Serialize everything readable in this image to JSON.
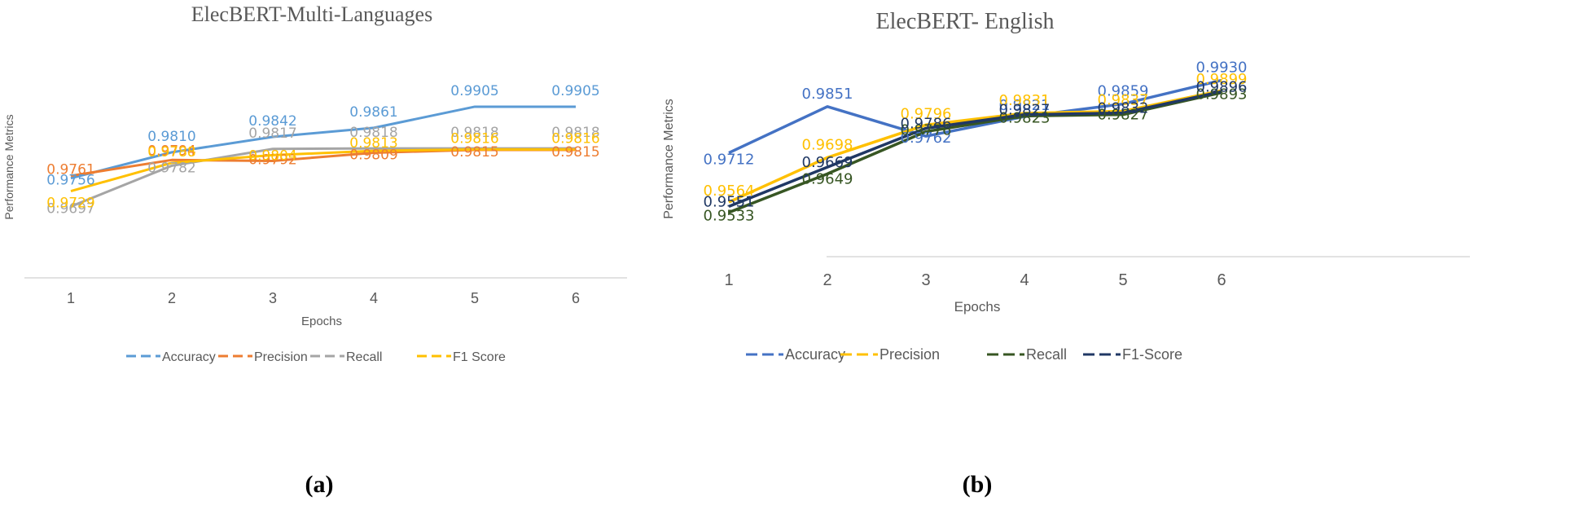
{
  "chart_data": [
    {
      "type": "line",
      "title": "ElecBERT-Multi-Languages",
      "subcaption": "(a)",
      "xlabel": "Epochs",
      "ylabel": "Performance Metrics",
      "categories": [
        "1",
        "2",
        "3",
        "4",
        "5",
        "6"
      ],
      "ylim": [
        0.955,
        1.0
      ],
      "legend_position": "bottom",
      "series": [
        {
          "name": "Accuracy",
          "color": "#5B9BD5",
          "values": [
            0.9756,
            0.981,
            0.9842,
            0.9861,
            0.9905,
            0.9905
          ],
          "labels": [
            "0.9756",
            "0.9810",
            "0.9842",
            "0.9861",
            "0.9905",
            "0.9905"
          ]
        },
        {
          "name": "Precision",
          "color": "#ED7D31",
          "values": [
            0.9761,
            0.9794,
            0.9792,
            0.9809,
            0.9815,
            0.9815
          ],
          "labels": [
            "0.9761",
            "0.9794",
            "0.9792",
            "0.9809",
            "0.9815",
            "0.9815"
          ]
        },
        {
          "name": "Recall",
          "color": "#A5A5A5",
          "values": [
            0.9697,
            0.9782,
            0.9817,
            0.9818,
            0.9818,
            0.9818
          ],
          "labels": [
            "0.9697",
            "0.9782",
            "0.9817",
            "0.9818",
            "0.9818",
            "0.9818"
          ]
        },
        {
          "name": "F1 Score",
          "color": "#FFC000",
          "values": [
            0.9729,
            0.9788,
            0.9804,
            0.9813,
            0.9816,
            0.9816
          ],
          "labels": [
            "0.9729",
            "0.9788",
            "0.9804",
            "0.9813",
            "0.9816",
            "0.9816"
          ]
        }
      ]
    },
    {
      "type": "line",
      "title": "ElecBERT- English",
      "subcaption": "(b)",
      "xlabel": "Epochs",
      "ylabel": "Performance Metrics",
      "categories": [
        "1",
        "2",
        "3",
        "4",
        "5",
        "6"
      ],
      "ylim": [
        0.94,
        1.0
      ],
      "legend_position": "bottom",
      "series": [
        {
          "name": "Accuracy",
          "color": "#4472C4",
          "values": [
            0.9712,
            0.9851,
            0.9762,
            0.9821,
            0.9859,
            0.993
          ],
          "labels": [
            "0.9712",
            "0.9851",
            "0.9762",
            "0.9821",
            "0.9859",
            "0.9930"
          ]
        },
        {
          "name": "Precision",
          "color": "#FFC000",
          "values": [
            0.9564,
            0.9698,
            0.9796,
            0.9831,
            0.9837,
            0.9899
          ],
          "labels": [
            "0.9564",
            "0.9698",
            "0.9796",
            "0.9831",
            "0.9837",
            "0.9899"
          ]
        },
        {
          "name": "Recall",
          "color": "#375623",
          "values": [
            0.9533,
            0.9649,
            0.9776,
            0.9823,
            0.9827,
            0.9893
          ],
          "labels": [
            "0.9533",
            "0.9649",
            "0.9776",
            "0.9823",
            "0.9827",
            "0.9893"
          ]
        },
        {
          "name": "F1-Score",
          "color": "#203864",
          "values": [
            0.9551,
            0.9669,
            0.9786,
            0.9827,
            0.9832,
            0.9896
          ],
          "labels": [
            "0.9551",
            "0.9669",
            "0.9786",
            "0.9827",
            "0.9832",
            "0.9896"
          ]
        }
      ]
    }
  ]
}
